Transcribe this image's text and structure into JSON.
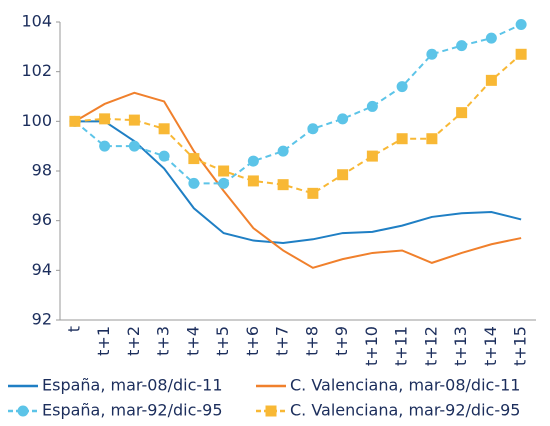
{
  "chart_data": {
    "type": "line",
    "categories": [
      "t",
      "t+1",
      "t+2",
      "t+3",
      "t+4",
      "t+5",
      "t+6",
      "t+7",
      "t+8",
      "t+9",
      "t+10",
      "t+11",
      "t+12",
      "t+13",
      "t+14",
      "t+15"
    ],
    "series": [
      {
        "name": "España, mar-08/dic-11",
        "color": "#1f7fc4",
        "marker": "none",
        "dashed": false,
        "values": [
          100,
          100.0,
          99.2,
          98.1,
          96.5,
          95.5,
          95.2,
          95.1,
          95.25,
          95.5,
          95.55,
          95.8,
          96.15,
          96.3,
          96.35,
          96.05
        ]
      },
      {
        "name": "C. Valenciana, mar-08/dic-11",
        "color": "#f0802c",
        "marker": "none",
        "dashed": false,
        "values": [
          100,
          100.7,
          101.15,
          100.8,
          98.8,
          97.2,
          95.7,
          94.8,
          94.1,
          94.45,
          94.7,
          94.8,
          94.3,
          94.7,
          95.05,
          95.3
        ]
      },
      {
        "name": "España, mar-92/dic-95",
        "color": "#5cc4e8",
        "marker": "circle",
        "dashed": true,
        "values": [
          100,
          99.0,
          99.0,
          98.6,
          97.5,
          97.5,
          98.4,
          98.8,
          99.7,
          100.1,
          100.6,
          101.4,
          102.7,
          103.05,
          103.35,
          103.9
        ]
      },
      {
        "name": "C. Valenciana, mar-92/dic-95",
        "color": "#f8b835",
        "marker": "square",
        "dashed": true,
        "values": [
          100,
          100.1,
          100.05,
          99.7,
          98.5,
          98.0,
          97.6,
          97.45,
          97.1,
          97.85,
          98.6,
          99.3,
          99.3,
          100.35,
          101.65,
          102.7
        ]
      }
    ],
    "ylim": [
      92,
      104
    ],
    "yticks": [
      92,
      94,
      96,
      98,
      100,
      102,
      104
    ],
    "grid": false
  }
}
